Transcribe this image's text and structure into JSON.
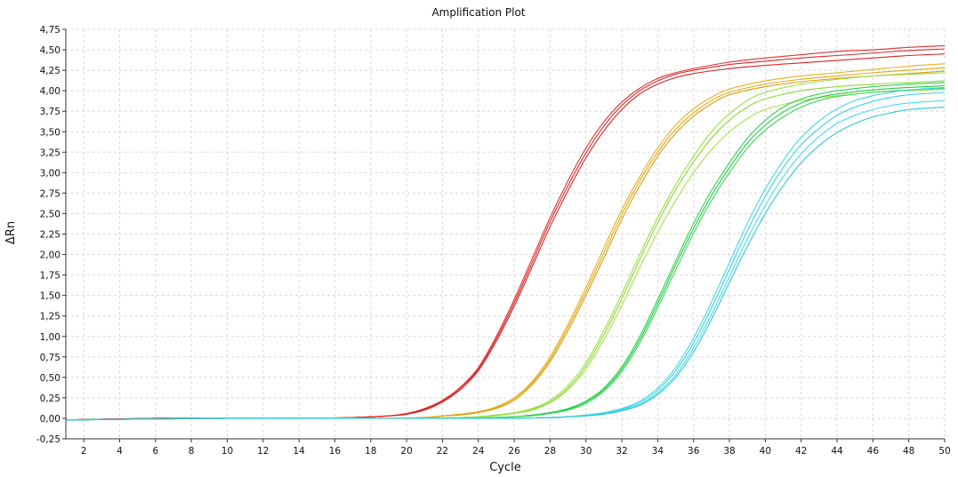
{
  "chart_data": {
    "type": "line",
    "title": "Amplification Plot",
    "xlabel": "Cycle",
    "ylabel": "ΔRn",
    "xlim": [
      1,
      50
    ],
    "ylim": [
      -0.25,
      4.75
    ],
    "grid": true,
    "x_ticks": [
      2,
      4,
      6,
      8,
      10,
      12,
      14,
      16,
      18,
      20,
      22,
      24,
      26,
      28,
      30,
      32,
      34,
      36,
      38,
      40,
      42,
      44,
      46,
      48,
      50
    ],
    "y_ticks": [
      -0.25,
      0,
      0.25,
      0.5,
      0.75,
      1,
      1.25,
      1.5,
      1.75,
      2,
      2.25,
      2.5,
      2.75,
      3,
      3.25,
      3.5,
      3.75,
      4,
      4.25,
      4.5,
      4.75
    ],
    "y_tick_labels": [
      "-0,25",
      "0,00",
      "0,25",
      "0,50",
      "0,75",
      "1,00",
      "1,25",
      "1,50",
      "1,75",
      "2,00",
      "2,25",
      "2,50",
      "2,75",
      "3,00",
      "3,25",
      "3,50",
      "3,75",
      "4,00",
      "4,25",
      "4,50",
      "4,75"
    ],
    "series": [
      {
        "color": "#e03030",
        "x": [
          1,
          6,
          10,
          14,
          17,
          19,
          20,
          21,
          22,
          23,
          24,
          25,
          26,
          27,
          28,
          29,
          30,
          31,
          32,
          33,
          34,
          35,
          36,
          38,
          40,
          42,
          44,
          46,
          48,
          50
        ],
        "values": [
          -0.02,
          0.0,
          0.0,
          0.0,
          0.01,
          0.03,
          0.06,
          0.12,
          0.22,
          0.38,
          0.62,
          1.0,
          1.45,
          1.95,
          2.45,
          2.9,
          3.3,
          3.62,
          3.86,
          4.03,
          4.15,
          4.22,
          4.27,
          4.35,
          4.4,
          4.44,
          4.48,
          4.5,
          4.53,
          4.55
        ]
      },
      {
        "color": "#dc2a2a",
        "x": [
          1,
          6,
          10,
          14,
          17,
          19,
          20,
          21,
          22,
          23,
          24,
          25,
          26,
          27,
          28,
          29,
          30,
          31,
          32,
          33,
          34,
          35,
          36,
          38,
          40,
          42,
          44,
          46,
          48,
          50
        ],
        "values": [
          -0.02,
          0.0,
          0.0,
          0.0,
          0.01,
          0.03,
          0.05,
          0.11,
          0.21,
          0.37,
          0.6,
          0.97,
          1.41,
          1.9,
          2.4,
          2.84,
          3.24,
          3.57,
          3.82,
          4.0,
          4.12,
          4.2,
          4.25,
          4.32,
          4.36,
          4.4,
          4.43,
          4.46,
          4.49,
          4.51
        ]
      },
      {
        "color": "#d82424",
        "x": [
          1,
          6,
          10,
          14,
          17,
          19,
          20,
          21,
          22,
          23,
          24,
          25,
          26,
          27,
          28,
          29,
          30,
          31,
          32,
          33,
          34,
          35,
          36,
          38,
          40,
          42,
          44,
          46,
          48,
          50
        ],
        "values": [
          -0.02,
          0.0,
          0.0,
          0.0,
          0.01,
          0.03,
          0.05,
          0.1,
          0.2,
          0.35,
          0.58,
          0.94,
          1.37,
          1.85,
          2.34,
          2.78,
          3.18,
          3.51,
          3.77,
          3.96,
          4.08,
          4.16,
          4.21,
          4.27,
          4.31,
          4.34,
          4.37,
          4.4,
          4.43,
          4.45
        ]
      },
      {
        "color": "#e8b020",
        "x": [
          1,
          10,
          15,
          19,
          21,
          22,
          23,
          24,
          25,
          26,
          27,
          28,
          29,
          30,
          31,
          32,
          33,
          34,
          35,
          36,
          37,
          38,
          40,
          42,
          44,
          46,
          48,
          50
        ],
        "values": [
          -0.02,
          0.0,
          0.0,
          0.0,
          0.01,
          0.03,
          0.05,
          0.08,
          0.14,
          0.25,
          0.45,
          0.75,
          1.15,
          1.6,
          2.08,
          2.55,
          2.95,
          3.3,
          3.58,
          3.78,
          3.92,
          4.02,
          4.12,
          4.18,
          4.22,
          4.26,
          4.3,
          4.33
        ]
      },
      {
        "color": "#e0a818",
        "x": [
          1,
          10,
          15,
          19,
          21,
          22,
          23,
          24,
          25,
          26,
          27,
          28,
          29,
          30,
          31,
          32,
          33,
          34,
          35,
          36,
          37,
          38,
          40,
          42,
          44,
          46,
          48,
          50
        ],
        "values": [
          -0.02,
          0.0,
          0.0,
          0.0,
          0.01,
          0.03,
          0.05,
          0.08,
          0.13,
          0.24,
          0.43,
          0.72,
          1.11,
          1.55,
          2.02,
          2.49,
          2.9,
          3.25,
          3.53,
          3.73,
          3.88,
          3.98,
          4.08,
          4.14,
          4.18,
          4.22,
          4.25,
          4.28
        ]
      },
      {
        "color": "#d8a010",
        "x": [
          1,
          10,
          15,
          19,
          21,
          22,
          23,
          24,
          25,
          26,
          27,
          28,
          29,
          30,
          31,
          32,
          33,
          34,
          35,
          36,
          37,
          38,
          40,
          42,
          44,
          46,
          48,
          50
        ],
        "values": [
          -0.02,
          0.0,
          0.0,
          0.0,
          0.01,
          0.03,
          0.04,
          0.07,
          0.12,
          0.22,
          0.41,
          0.69,
          1.07,
          1.5,
          1.96,
          2.43,
          2.84,
          3.2,
          3.48,
          3.69,
          3.84,
          3.95,
          4.05,
          4.11,
          4.15,
          4.18,
          4.21,
          4.24
        ]
      },
      {
        "color": "#9ae040",
        "x": [
          1,
          10,
          15,
          20,
          23,
          24,
          25,
          26,
          27,
          28,
          29,
          30,
          31,
          32,
          33,
          34,
          35,
          36,
          37,
          38,
          39,
          40,
          42,
          44,
          46,
          48,
          50
        ],
        "values": [
          -0.02,
          0.0,
          0.0,
          0.0,
          0.01,
          0.02,
          0.04,
          0.07,
          0.12,
          0.22,
          0.4,
          0.68,
          1.07,
          1.52,
          2.0,
          2.45,
          2.85,
          3.2,
          3.5,
          3.72,
          3.88,
          3.98,
          4.08,
          4.14,
          4.18,
          4.2,
          4.22
        ]
      },
      {
        "color": "#8cd838",
        "x": [
          1,
          10,
          15,
          20,
          23,
          24,
          25,
          26,
          27,
          28,
          29,
          30,
          31,
          32,
          33,
          34,
          35,
          36,
          37,
          38,
          39,
          40,
          42,
          44,
          46,
          48,
          50
        ],
        "values": [
          -0.02,
          0.0,
          0.0,
          0.0,
          0.01,
          0.02,
          0.04,
          0.06,
          0.11,
          0.2,
          0.37,
          0.64,
          1.02,
          1.46,
          1.94,
          2.39,
          2.79,
          3.13,
          3.42,
          3.64,
          3.8,
          3.9,
          4.0,
          4.05,
          4.08,
          4.1,
          4.12
        ]
      },
      {
        "color": "#a4e448",
        "x": [
          1,
          10,
          15,
          20,
          23,
          24,
          25,
          26,
          27,
          28,
          29,
          30,
          31,
          32,
          33,
          34,
          35,
          36,
          37,
          38,
          39,
          40,
          42,
          44,
          46,
          48,
          50
        ],
        "values": [
          -0.02,
          0.0,
          0.0,
          0.0,
          0.01,
          0.02,
          0.03,
          0.06,
          0.1,
          0.19,
          0.35,
          0.6,
          0.96,
          1.38,
          1.84,
          2.27,
          2.66,
          3.0,
          3.28,
          3.5,
          3.66,
          3.77,
          3.88,
          3.94,
          3.98,
          4.0,
          4.02
        ]
      },
      {
        "color": "#30d050",
        "x": [
          1,
          10,
          15,
          22,
          25,
          26,
          27,
          28,
          29,
          30,
          31,
          32,
          33,
          34,
          35,
          36,
          37,
          38,
          39,
          40,
          41,
          42,
          43,
          44,
          46,
          48,
          50
        ],
        "values": [
          -0.02,
          0.0,
          0.0,
          0.0,
          0.01,
          0.02,
          0.04,
          0.07,
          0.12,
          0.21,
          0.37,
          0.63,
          1.0,
          1.45,
          1.92,
          2.38,
          2.78,
          3.12,
          3.42,
          3.64,
          3.8,
          3.9,
          3.96,
          4.0,
          4.05,
          4.08,
          4.1
        ]
      },
      {
        "color": "#28c848",
        "x": [
          1,
          10,
          15,
          22,
          25,
          26,
          27,
          28,
          29,
          30,
          31,
          32,
          33,
          34,
          35,
          36,
          37,
          38,
          39,
          40,
          41,
          42,
          43,
          44,
          46,
          48,
          50
        ],
        "values": [
          -0.02,
          0.0,
          0.0,
          0.0,
          0.01,
          0.02,
          0.04,
          0.07,
          0.11,
          0.2,
          0.35,
          0.6,
          0.96,
          1.4,
          1.87,
          2.32,
          2.72,
          3.06,
          3.36,
          3.58,
          3.74,
          3.85,
          3.92,
          3.96,
          4.01,
          4.04,
          4.06
        ]
      },
      {
        "color": "#38d858",
        "x": [
          1,
          10,
          15,
          22,
          25,
          26,
          27,
          28,
          29,
          30,
          31,
          32,
          33,
          34,
          35,
          36,
          37,
          38,
          39,
          40,
          41,
          42,
          43,
          44,
          46,
          48,
          50
        ],
        "values": [
          -0.02,
          0.0,
          0.0,
          0.0,
          0.01,
          0.02,
          0.03,
          0.06,
          0.1,
          0.18,
          0.33,
          0.57,
          0.92,
          1.35,
          1.81,
          2.26,
          2.66,
          3.0,
          3.3,
          3.52,
          3.68,
          3.8,
          3.88,
          3.93,
          3.98,
          4.01,
          4.03
        ]
      },
      {
        "color": "#40d8e8",
        "x": [
          1,
          10,
          15,
          25,
          28,
          29,
          30,
          31,
          32,
          33,
          34,
          35,
          36,
          37,
          38,
          39,
          40,
          41,
          42,
          43,
          44,
          45,
          46,
          47,
          48,
          50
        ],
        "values": [
          -0.02,
          0.0,
          0.0,
          0.0,
          0.01,
          0.02,
          0.04,
          0.07,
          0.12,
          0.21,
          0.37,
          0.62,
          0.98,
          1.42,
          1.9,
          2.38,
          2.8,
          3.15,
          3.43,
          3.63,
          3.78,
          3.88,
          3.94,
          3.98,
          4.01,
          4.04
        ]
      },
      {
        "color": "#38d0e0",
        "x": [
          1,
          10,
          15,
          25,
          28,
          29,
          30,
          31,
          32,
          33,
          34,
          35,
          36,
          37,
          38,
          39,
          40,
          41,
          42,
          43,
          44,
          45,
          46,
          47,
          48,
          50
        ],
        "values": [
          -0.02,
          0.0,
          0.0,
          0.0,
          0.01,
          0.02,
          0.04,
          0.06,
          0.11,
          0.19,
          0.34,
          0.58,
          0.92,
          1.35,
          1.82,
          2.29,
          2.71,
          3.06,
          3.34,
          3.54,
          3.7,
          3.8,
          3.87,
          3.92,
          3.95,
          3.98
        ]
      },
      {
        "color": "#48dcec",
        "x": [
          1,
          10,
          15,
          25,
          28,
          29,
          30,
          31,
          32,
          33,
          34,
          35,
          36,
          37,
          38,
          39,
          40,
          41,
          42,
          43,
          44,
          45,
          46,
          47,
          48,
          50
        ],
        "values": [
          -0.02,
          0.0,
          0.0,
          0.0,
          0.01,
          0.02,
          0.03,
          0.05,
          0.1,
          0.17,
          0.31,
          0.53,
          0.86,
          1.27,
          1.73,
          2.19,
          2.6,
          2.95,
          3.23,
          3.44,
          3.6,
          3.7,
          3.77,
          3.82,
          3.85,
          3.88
        ]
      },
      {
        "color": "#30c8d8",
        "x": [
          1,
          10,
          15,
          25,
          28,
          29,
          30,
          31,
          32,
          33,
          34,
          35,
          36,
          37,
          38,
          39,
          40,
          41,
          42,
          43,
          44,
          45,
          46,
          47,
          48,
          50
        ],
        "values": [
          -0.02,
          0.0,
          0.0,
          0.0,
          0.01,
          0.02,
          0.03,
          0.05,
          0.09,
          0.16,
          0.29,
          0.5,
          0.81,
          1.21,
          1.66,
          2.1,
          2.5,
          2.84,
          3.12,
          3.33,
          3.49,
          3.6,
          3.68,
          3.73,
          3.77,
          3.8
        ]
      }
    ]
  }
}
